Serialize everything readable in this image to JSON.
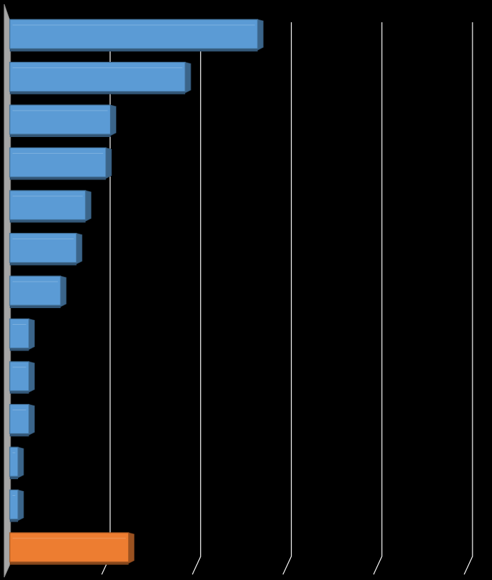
{
  "chart_data": {
    "type": "bar",
    "orientation": "horizontal",
    "style": "3d",
    "title": "",
    "xlabel": "",
    "ylabel": "",
    "grid": true,
    "legend": "none",
    "xlim": [
      0,
      100
    ],
    "categories": [
      "",
      "",
      "",
      "",
      "",
      "",
      "",
      "",
      "",
      "",
      "",
      "",
      ""
    ],
    "values": [
      53.5,
      37.5,
      21.0,
      20.0,
      15.5,
      13.5,
      10.0,
      3.0,
      3.0,
      3.0,
      0.6,
      0.6,
      25.0
    ],
    "colors": [
      "#5b9bd5",
      "#5b9bd5",
      "#5b9bd5",
      "#5b9bd5",
      "#5b9bd5",
      "#5b9bd5",
      "#5b9bd5",
      "#5b9bd5",
      "#5b9bd5",
      "#5b9bd5",
      "#5b9bd5",
      "#5b9bd5",
      "#ed7d31"
    ]
  }
}
